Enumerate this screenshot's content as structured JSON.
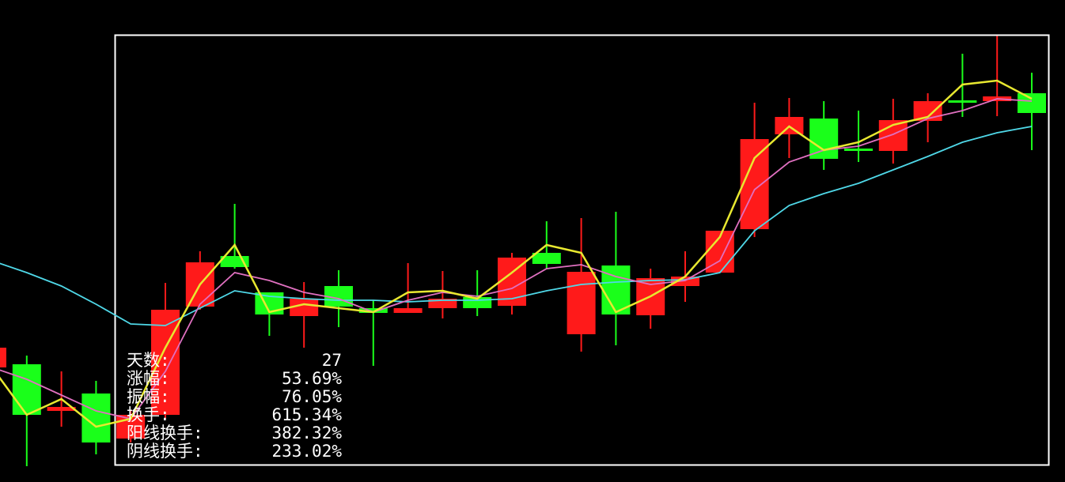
{
  "chart_data": {
    "type": "candlestick",
    "title": "",
    "xlabel": "",
    "ylabel": "",
    "ylim": [
      0,
      61
    ],
    "grid": false,
    "colors": {
      "up": "#ff1a1a",
      "down": "#1aff1a",
      "frame": "#ffffff",
      "background": "#000000"
    },
    "candles": [
      {
        "o": 14.5,
        "h": 17.5,
        "l": 14.0,
        "c": 17.0
      },
      {
        "o": 14.9,
        "h": 16.0,
        "l": 2.0,
        "c": 8.5
      },
      {
        "o": 9.0,
        "h": 14.0,
        "l": 7.0,
        "c": 9.5
      },
      {
        "o": 11.2,
        "h": 12.8,
        "l": 3.5,
        "c": 5.0
      },
      {
        "o": 5.5,
        "h": 9.0,
        "l": 5.0,
        "c": 8.5
      },
      {
        "o": 8.5,
        "h": 25.2,
        "l": 8.0,
        "c": 21.8
      },
      {
        "o": 22.2,
        "h": 29.2,
        "l": 21.8,
        "c": 27.8
      },
      {
        "o": 28.6,
        "h": 35.2,
        "l": 27.0,
        "c": 27.2
      },
      {
        "o": 24.0,
        "h": 24.0,
        "l": 18.5,
        "c": 21.2
      },
      {
        "o": 21.0,
        "h": 25.3,
        "l": 17.0,
        "c": 23.2
      },
      {
        "o": 24.8,
        "h": 26.8,
        "l": 19.6,
        "c": 22.2
      },
      {
        "o": 22.0,
        "h": 23.0,
        "l": 14.7,
        "c": 21.4
      },
      {
        "o": 21.4,
        "h": 27.7,
        "l": 21.4,
        "c": 22.0
      },
      {
        "o": 22.0,
        "h": 26.7,
        "l": 20.7,
        "c": 23.2
      },
      {
        "o": 23.4,
        "h": 26.8,
        "l": 21.0,
        "c": 22.0
      },
      {
        "o": 22.3,
        "h": 29.0,
        "l": 21.2,
        "c": 28.4
      },
      {
        "o": 29.0,
        "h": 33.0,
        "l": 27.0,
        "c": 27.6
      },
      {
        "o": 18.7,
        "h": 33.4,
        "l": 16.5,
        "c": 26.6
      },
      {
        "o": 27.4,
        "h": 34.2,
        "l": 17.3,
        "c": 21.2
      },
      {
        "o": 21.1,
        "h": 27.0,
        "l": 19.4,
        "c": 25.8
      },
      {
        "o": 24.8,
        "h": 29.2,
        "l": 22.8,
        "c": 26.0
      },
      {
        "o": 26.5,
        "h": 31.8,
        "l": 26.5,
        "c": 31.8
      },
      {
        "o": 32.0,
        "h": 48.0,
        "l": 31.0,
        "c": 43.4
      },
      {
        "o": 44.0,
        "h": 48.6,
        "l": 41.0,
        "c": 46.2
      },
      {
        "o": 46.0,
        "h": 48.2,
        "l": 39.5,
        "c": 40.9
      },
      {
        "o": 42.2,
        "h": 47.0,
        "l": 40.5,
        "c": 41.9
      },
      {
        "o": 41.9,
        "h": 48.5,
        "l": 40.3,
        "c": 45.8
      },
      {
        "o": 45.7,
        "h": 49.2,
        "l": 43.0,
        "c": 48.2
      },
      {
        "o": 48.3,
        "h": 54.2,
        "l": 46.2,
        "c": 48.0
      },
      {
        "o": 48.2,
        "h": 56.5,
        "l": 46.3,
        "c": 48.8
      },
      {
        "o": 49.2,
        "h": 51.8,
        "l": 42.0,
        "c": 46.7
      }
    ],
    "lines": [
      {
        "color": "#4fd8e8",
        "values": [
          28.0,
          26.5,
          24.8,
          22.5,
          20.0,
          19.8,
          22.0,
          24.2,
          23.5,
          23.2,
          23.0,
          23.0,
          22.8,
          23.0,
          23.0,
          23.2,
          24.2,
          25.0,
          25.3,
          25.5,
          25.6,
          26.5,
          31.8,
          35.0,
          36.5,
          37.8,
          39.5,
          41.2,
          43.0,
          44.2,
          45.0
        ]
      },
      {
        "color": "#e070c0",
        "values": [
          14.5,
          13.0,
          11.0,
          9.0,
          8.0,
          14.0,
          22.5,
          26.5,
          25.5,
          24.0,
          23.2,
          21.5,
          23.0,
          24.0,
          23.5,
          24.5,
          27.0,
          27.5,
          26.0,
          25.0,
          25.5,
          28.0,
          37.0,
          40.5,
          42.0,
          42.5,
          44.0,
          46.0,
          47.0,
          48.5,
          48.2
        ]
      },
      {
        "color": "#e8e830",
        "values": [
          14.5,
          8.5,
          10.5,
          7.0,
          8.0,
          17.0,
          25.0,
          30.0,
          21.5,
          22.5,
          22.0,
          21.5,
          24.0,
          24.2,
          23.2,
          26.5,
          30.0,
          29.0,
          21.5,
          23.5,
          26.0,
          31.0,
          41.0,
          45.0,
          42.0,
          43.0,
          45.2,
          46.2,
          50.3,
          50.8,
          48.5
        ]
      }
    ]
  },
  "stats": [
    {
      "label": "天数:",
      "value": "27"
    },
    {
      "label": "涨幅:",
      "value": "53.69%"
    },
    {
      "label": "振幅:",
      "value": "76.05%"
    },
    {
      "label": "换手:",
      "value": "615.34%"
    },
    {
      "label": "阳线换手:",
      "value": "382.32%"
    },
    {
      "label": "阴线换手:",
      "value": "233.02%"
    }
  ]
}
